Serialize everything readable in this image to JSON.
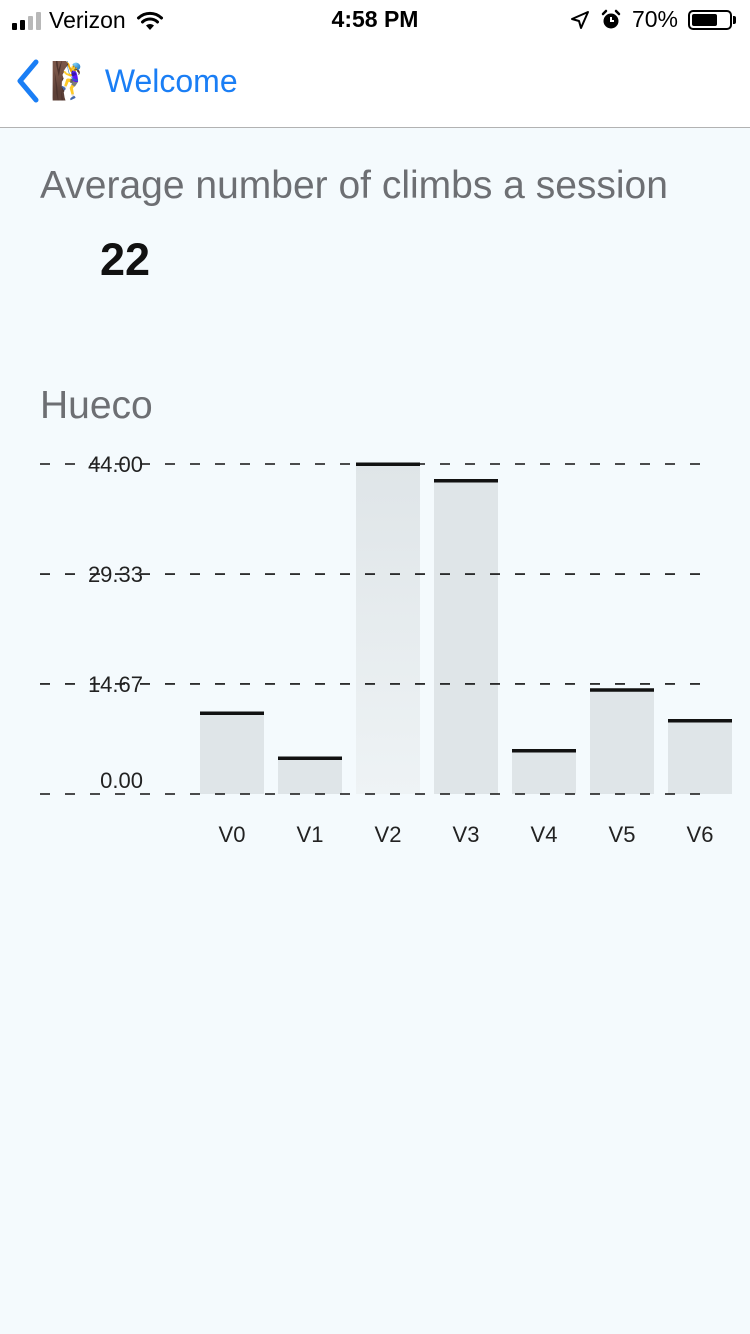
{
  "status_bar": {
    "carrier": "Verizon",
    "time": "4:58 PM",
    "battery": "70%",
    "battery_level": 0.7,
    "icons": [
      "signal-bars-icon",
      "wifi-icon",
      "location-arrow-icon",
      "alarm-clock-icon",
      "battery-icon"
    ]
  },
  "nav": {
    "back_label": "Welcome",
    "back_icon": "chevron-left-icon",
    "emoji": "🧗‍♀️",
    "tint": "#1a7ef5"
  },
  "main": {
    "avg_heading": "Average number of climbs a session",
    "avg_value": "22",
    "chart_heading": "Hueco"
  },
  "chart_data": {
    "type": "bar",
    "title": "Hueco",
    "categories": [
      "V0",
      "V1",
      "V2",
      "V3",
      "V4",
      "V5",
      "V6"
    ],
    "values": [
      10.8,
      4.8,
      44.0,
      41.8,
      5.8,
      13.9,
      9.8
    ],
    "y_ticks": [
      "0.00",
      "14.67",
      "29.33",
      "44.00"
    ],
    "ylim": [
      0,
      44
    ],
    "grid": true,
    "grid_style": "dashed",
    "bar_color": "#dfe5e8",
    "highlight_bar_color": "#eef3f5",
    "cap_color": "#111111"
  }
}
